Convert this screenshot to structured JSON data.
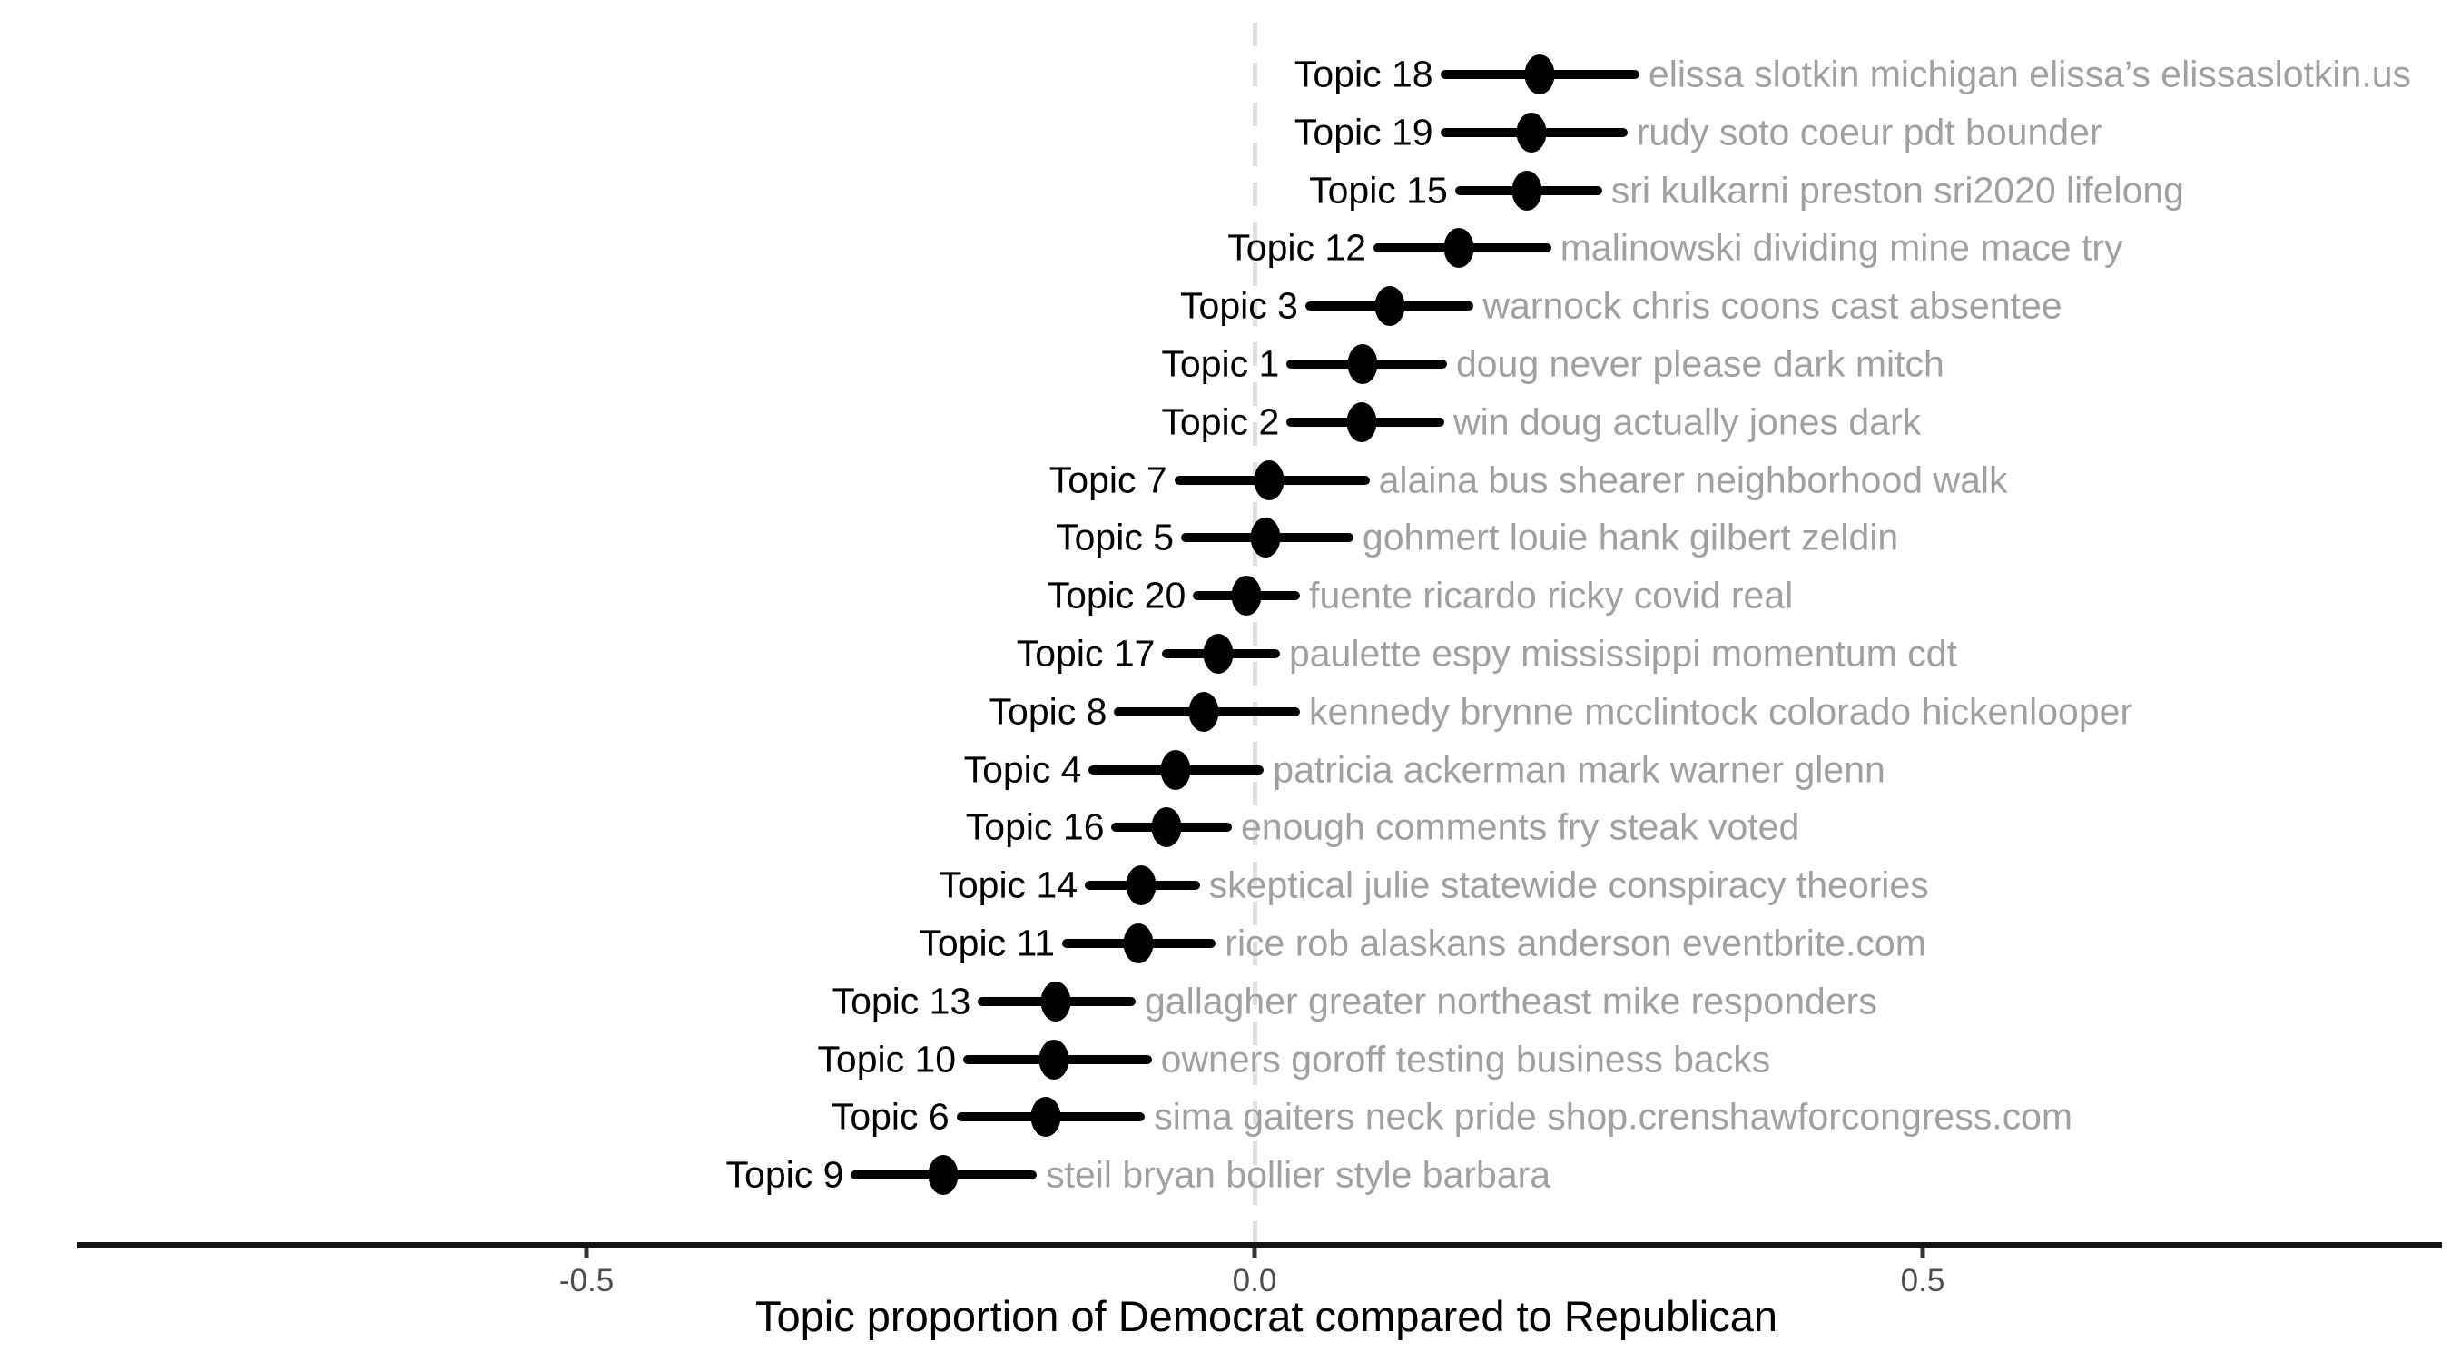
{
  "colors": {
    "background": "#ffffff",
    "point_and_bar": "#000000",
    "topic_label": "#000000",
    "keywords_text": "#a0a0a0",
    "tick_label": "#4d4d4d",
    "axis_line": "#151515",
    "zero_reference_line": "#e0e0e0",
    "axis_title": "#000000"
  },
  "chart_data": {
    "type": "scatter",
    "subtype": "dot-plot-with-horizontal-error-bars",
    "title": "",
    "xlabel": "Topic proportion of Democrat compared to Republican",
    "ylabel": "",
    "xlim": [
      -0.88,
      0.89
    ],
    "grid": "off",
    "zero_reference_line": {
      "x": 0.0,
      "style": "dashed",
      "color": "#e0e0e0"
    },
    "x_ticks": [
      {
        "value": -0.5,
        "label": "-0.5"
      },
      {
        "value": 0.0,
        "label": "0.0"
      },
      {
        "value": 0.5,
        "label": "0.5"
      }
    ],
    "points": [
      {
        "topic": "Topic 18",
        "keywords": "elissa slotkin michigan elissa’s elissaslotkin.us",
        "estimate": 0.213,
        "ci_low": 0.139,
        "ci_high": 0.288
      },
      {
        "topic": "Topic 19",
        "keywords": "rudy soto coeur pdt bounder",
        "estimate": 0.207,
        "ci_low": 0.139,
        "ci_high": 0.279
      },
      {
        "topic": "Topic 15",
        "keywords": "sri kulkarni preston sri2020 lifelong",
        "estimate": 0.204,
        "ci_low": 0.15,
        "ci_high": 0.26
      },
      {
        "topic": "Topic 12",
        "keywords": "malinowski dividing mine mace try",
        "estimate": 0.153,
        "ci_low": 0.089,
        "ci_high": 0.222
      },
      {
        "topic": "Topic 3",
        "keywords": "warnock chris coons cast absentee",
        "estimate": 0.101,
        "ci_low": 0.038,
        "ci_high": 0.164
      },
      {
        "topic": "Topic 1",
        "keywords": "doug never please dark mitch",
        "estimate": 0.081,
        "ci_low": 0.024,
        "ci_high": 0.144
      },
      {
        "topic": "Topic 2",
        "keywords": "win doug actually jones dark",
        "estimate": 0.08,
        "ci_low": 0.024,
        "ci_high": 0.142
      },
      {
        "topic": "Topic 7",
        "keywords": "alaina bus shearer neighborhood walk",
        "estimate": 0.011,
        "ci_low": -0.06,
        "ci_high": 0.086
      },
      {
        "topic": "Topic 5",
        "keywords": "gohmert louie hank gilbert zeldin",
        "estimate": 0.008,
        "ci_low": -0.055,
        "ci_high": 0.074
      },
      {
        "topic": "Topic 20",
        "keywords": "fuente ricardo ricky covid real",
        "estimate": -0.006,
        "ci_low": -0.046,
        "ci_high": 0.034
      },
      {
        "topic": "Topic 17",
        "keywords": "paulette espy mississippi momentum cdt",
        "estimate": -0.027,
        "ci_low": -0.069,
        "ci_high": 0.019
      },
      {
        "topic": "Topic 8",
        "keywords": "kennedy brynne mcclintock colorado hickenlooper",
        "estimate": -0.038,
        "ci_low": -0.105,
        "ci_high": 0.034
      },
      {
        "topic": "Topic 4",
        "keywords": "patricia ackerman mark warner glenn",
        "estimate": -0.059,
        "ci_low": -0.124,
        "ci_high": 0.007
      },
      {
        "topic": "Topic 16",
        "keywords": "enough comments fry steak voted",
        "estimate": -0.066,
        "ci_low": -0.107,
        "ci_high": -0.017
      },
      {
        "topic": "Topic 14",
        "keywords": "skeptical julie statewide conspiracy theories",
        "estimate": -0.085,
        "ci_low": -0.127,
        "ci_high": -0.041
      },
      {
        "topic": "Topic 11",
        "keywords": "rice rob alaskans anderson eventbrite.com",
        "estimate": -0.087,
        "ci_low": -0.144,
        "ci_high": -0.029
      },
      {
        "topic": "Topic 13",
        "keywords": "gallagher greater northeast mike responders",
        "estimate": -0.149,
        "ci_low": -0.207,
        "ci_high": -0.089
      },
      {
        "topic": "Topic 10",
        "keywords": "owners goroff testing business backs",
        "estimate": -0.15,
        "ci_low": -0.218,
        "ci_high": -0.077
      },
      {
        "topic": "Topic 6",
        "keywords": "sima gaiters neck pride shop.crenshawforcongress.com",
        "estimate": -0.156,
        "ci_low": -0.223,
        "ci_high": -0.082
      },
      {
        "topic": "Topic 9",
        "keywords": "steil bryan bollier style barbara",
        "estimate": -0.233,
        "ci_low": -0.302,
        "ci_high": -0.163
      }
    ]
  }
}
